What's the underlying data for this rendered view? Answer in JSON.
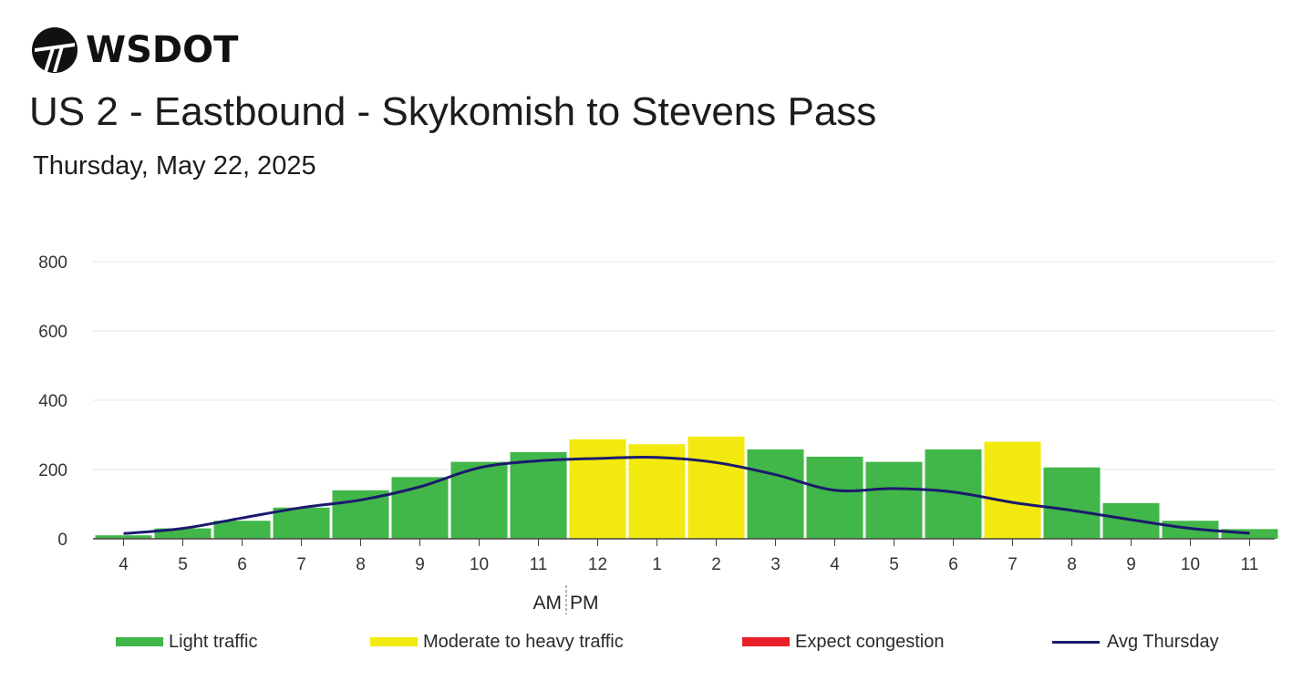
{
  "header": {
    "logo_text": "WSDOT",
    "title": "US 2 - Eastbound - Skykomish to Stevens Pass",
    "subtitle": "Thursday, May 22, 2025"
  },
  "colors": {
    "light": "#41b649",
    "moderate": "#f2e90f",
    "congestion": "#e8202a",
    "avg_line": "#1b1a6e",
    "grid": "#e6e6e6"
  },
  "chart_data": {
    "type": "bar",
    "categories": [
      "4",
      "5",
      "6",
      "7",
      "8",
      "9",
      "10",
      "11",
      "12",
      "1",
      "2",
      "3",
      "4",
      "5",
      "6",
      "7",
      "8",
      "9",
      "10",
      "11"
    ],
    "series": [
      {
        "name": "Light traffic / Moderate to heavy traffic",
        "values": [
          10,
          30,
          52,
          90,
          140,
          178,
          222,
          250,
          287,
          273,
          295,
          258,
          237,
          222,
          258,
          280,
          206,
          103,
          52,
          28
        ],
        "levels": [
          "light",
          "light",
          "light",
          "light",
          "light",
          "light",
          "light",
          "light",
          "moderate",
          "moderate",
          "moderate",
          "light",
          "light",
          "light",
          "light",
          "moderate",
          "light",
          "light",
          "light",
          "light"
        ]
      },
      {
        "name": "Avg Thursday",
        "values": [
          15,
          30,
          60,
          90,
          112,
          150,
          205,
          225,
          232,
          235,
          220,
          185,
          140,
          145,
          135,
          105,
          82,
          55,
          30,
          16
        ]
      }
    ],
    "ylim": [
      0,
      800
    ],
    "yticks": [
      "0",
      "200",
      "400",
      "600",
      "800"
    ],
    "x_group_labels": {
      "am": "AM",
      "pm": "PM"
    },
    "grid": true,
    "legend": [
      {
        "label": "Light traffic",
        "key": "light"
      },
      {
        "label": "Moderate to heavy traffic",
        "key": "moderate"
      },
      {
        "label": "Expect congestion",
        "key": "congestion"
      },
      {
        "label": "Avg Thursday",
        "key": "avg_line"
      }
    ],
    "legend_position": "bottom"
  }
}
